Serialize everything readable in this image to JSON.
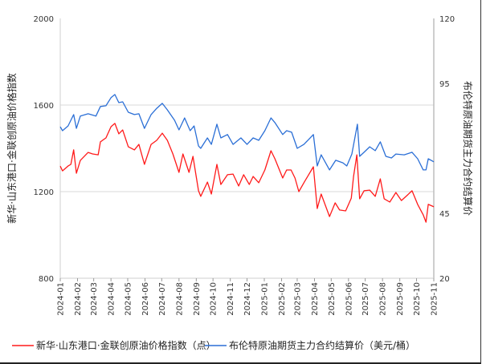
{
  "chart_data": {
    "type": "line",
    "title": "",
    "xlabel": "",
    "ylabel_left": "新华·山东港口·金联创原油价格指数",
    "ylabel_right": "布伦特原油期货主力合约结算价",
    "ylim_left": [
      800,
      2000
    ],
    "ylim_right": [
      20,
      120
    ],
    "yticks_left": [
      800,
      1200,
      1600,
      2000
    ],
    "yticks_right": [
      20,
      45,
      95,
      120
    ],
    "xlim": [
      "2024-01-01",
      "2025-11-01"
    ],
    "xticks": [
      "2024-01",
      "2024-02",
      "2024-03",
      "2024-04",
      "2024-05",
      "2024-06",
      "2024-07",
      "2024-08",
      "2024-09",
      "2024-10",
      "2024-11",
      "2024-12",
      "2025-01",
      "2025-02",
      "2025-03",
      "2025-04",
      "2025-05",
      "2025-06",
      "2025-07",
      "2025-08",
      "2025-09",
      "2025-10",
      "2025-11"
    ],
    "grid": "horizontal at 1200 and 1600",
    "legend_placement": "bottom",
    "series": [
      {
        "name": "新华·山东港口·金联创原油价格指数（点）",
        "axis": "left",
        "color": "#ff1a1a",
        "points": [
          [
            "2024-01-01",
            1318
          ],
          [
            "2024-01-05",
            1296
          ],
          [
            "2024-01-15",
            1318
          ],
          [
            "2024-01-20",
            1326
          ],
          [
            "2024-01-25",
            1393
          ],
          [
            "2024-01-30",
            1285
          ],
          [
            "2024-02-06",
            1344
          ],
          [
            "2024-02-20",
            1381
          ],
          [
            "2024-02-28",
            1374
          ],
          [
            "2024-03-09",
            1370
          ],
          [
            "2024-03-13",
            1430
          ],
          [
            "2024-03-23",
            1448
          ],
          [
            "2024-04-01",
            1500
          ],
          [
            "2024-04-08",
            1515
          ],
          [
            "2024-04-15",
            1467
          ],
          [
            "2024-04-22",
            1485
          ],
          [
            "2024-05-02",
            1407
          ],
          [
            "2024-05-13",
            1393
          ],
          [
            "2024-05-21",
            1418
          ],
          [
            "2024-05-31",
            1326
          ],
          [
            "2024-06-12",
            1418
          ],
          [
            "2024-06-22",
            1437
          ],
          [
            "2024-07-02",
            1470
          ],
          [
            "2024-07-11",
            1437
          ],
          [
            "2024-07-21",
            1374
          ],
          [
            "2024-08-01",
            1289
          ],
          [
            "2024-08-08",
            1374
          ],
          [
            "2024-08-19",
            1289
          ],
          [
            "2024-08-26",
            1363
          ],
          [
            "2024-09-05",
            1204
          ],
          [
            "2024-09-09",
            1178
          ],
          [
            "2024-09-21",
            1244
          ],
          [
            "2024-09-28",
            1189
          ],
          [
            "2024-10-08",
            1326
          ],
          [
            "2024-10-15",
            1233
          ],
          [
            "2024-10-27",
            1278
          ],
          [
            "2024-11-06",
            1281
          ],
          [
            "2024-11-16",
            1226
          ],
          [
            "2024-11-25",
            1278
          ],
          [
            "2024-12-05",
            1233
          ],
          [
            "2024-12-12",
            1270
          ],
          [
            "2024-12-22",
            1241
          ],
          [
            "2025-01-02",
            1300
          ],
          [
            "2025-01-13",
            1389
          ],
          [
            "2025-01-20",
            1352
          ],
          [
            "2025-02-03",
            1263
          ],
          [
            "2025-02-10",
            1300
          ],
          [
            "2025-02-18",
            1300
          ],
          [
            "2025-02-25",
            1263
          ],
          [
            "2025-03-04",
            1200
          ],
          [
            "2025-03-13",
            1241
          ],
          [
            "2025-03-30",
            1315
          ],
          [
            "2025-04-06",
            1122
          ],
          [
            "2025-04-13",
            1189
          ],
          [
            "2025-04-28",
            1085
          ],
          [
            "2025-05-08",
            1148
          ],
          [
            "2025-05-16",
            1115
          ],
          [
            "2025-05-27",
            1111
          ],
          [
            "2025-06-06",
            1170
          ],
          [
            "2025-06-10",
            1270
          ],
          [
            "2025-06-16",
            1370
          ],
          [
            "2025-06-21",
            1167
          ],
          [
            "2025-06-29",
            1204
          ],
          [
            "2025-07-09",
            1207
          ],
          [
            "2025-07-19",
            1178
          ],
          [
            "2025-07-28",
            1259
          ],
          [
            "2025-08-04",
            1167
          ],
          [
            "2025-08-14",
            1152
          ],
          [
            "2025-08-25",
            1196
          ],
          [
            "2025-09-04",
            1159
          ],
          [
            "2025-09-15",
            1185
          ],
          [
            "2025-09-23",
            1204
          ],
          [
            "2025-10-03",
            1141
          ],
          [
            "2025-10-13",
            1093
          ],
          [
            "2025-10-18",
            1059
          ],
          [
            "2025-10-22",
            1141
          ],
          [
            "2025-11-01",
            1130
          ]
        ]
      },
      {
        "name": "布伦特原油期货主力合约结算价（美元/桶）",
        "axis": "right",
        "color": "#2b6fd6",
        "points": [
          [
            "2024-01-01",
            78.3
          ],
          [
            "2024-01-05",
            76.8
          ],
          [
            "2024-01-15",
            78.6
          ],
          [
            "2024-01-25",
            83.0
          ],
          [
            "2024-01-30",
            77.7
          ],
          [
            "2024-02-06",
            82.4
          ],
          [
            "2024-02-20",
            83.3
          ],
          [
            "2024-03-05",
            82.4
          ],
          [
            "2024-03-13",
            86.1
          ],
          [
            "2024-03-23",
            86.4
          ],
          [
            "2024-04-01",
            89.5
          ],
          [
            "2024-04-08",
            90.7
          ],
          [
            "2024-04-15",
            87.6
          ],
          [
            "2024-04-22",
            87.9
          ],
          [
            "2024-05-02",
            83.9
          ],
          [
            "2024-05-13",
            83.0
          ],
          [
            "2024-05-21",
            83.3
          ],
          [
            "2024-05-31",
            77.7
          ],
          [
            "2024-06-12",
            83.0
          ],
          [
            "2024-06-22",
            85.4
          ],
          [
            "2024-07-02",
            87.3
          ],
          [
            "2024-07-11",
            84.8
          ],
          [
            "2024-07-24",
            80.8
          ],
          [
            "2024-08-01",
            77.1
          ],
          [
            "2024-08-11",
            81.7
          ],
          [
            "2024-08-21",
            76.8
          ],
          [
            "2024-08-28",
            78.6
          ],
          [
            "2024-09-05",
            70.9
          ],
          [
            "2024-09-09",
            70.0
          ],
          [
            "2024-09-21",
            74.0
          ],
          [
            "2024-09-28",
            71.5
          ],
          [
            "2024-10-08",
            79.3
          ],
          [
            "2024-10-15",
            74.0
          ],
          [
            "2024-10-27",
            75.3
          ],
          [
            "2024-11-06",
            71.5
          ],
          [
            "2024-11-20",
            74.0
          ],
          [
            "2024-12-01",
            71.5
          ],
          [
            "2024-12-12",
            74.0
          ],
          [
            "2024-12-22",
            73.1
          ],
          [
            "2025-01-02",
            76.8
          ],
          [
            "2025-01-13",
            81.7
          ],
          [
            "2025-01-20",
            79.9
          ],
          [
            "2025-02-03",
            75.3
          ],
          [
            "2025-02-10",
            76.8
          ],
          [
            "2025-02-19",
            76.2
          ],
          [
            "2025-03-01",
            70.0
          ],
          [
            "2025-03-13",
            71.5
          ],
          [
            "2025-03-30",
            75.3
          ],
          [
            "2025-04-06",
            63.2
          ],
          [
            "2025-04-13",
            67.5
          ],
          [
            "2025-04-28",
            61.7
          ],
          [
            "2025-05-09",
            65.4
          ],
          [
            "2025-05-22",
            64.4
          ],
          [
            "2025-05-29",
            63.2
          ],
          [
            "2025-06-07",
            67.8
          ],
          [
            "2025-06-17",
            79.3
          ],
          [
            "2025-06-21",
            66.9
          ],
          [
            "2025-06-29",
            68.5
          ],
          [
            "2025-07-09",
            70.6
          ],
          [
            "2025-07-19",
            69.1
          ],
          [
            "2025-07-28",
            72.5
          ],
          [
            "2025-08-07",
            66.9
          ],
          [
            "2025-08-17",
            66.3
          ],
          [
            "2025-08-25",
            67.8
          ],
          [
            "2025-09-09",
            67.5
          ],
          [
            "2025-09-23",
            68.5
          ],
          [
            "2025-10-03",
            66.0
          ],
          [
            "2025-10-13",
            61.7
          ],
          [
            "2025-10-18",
            61.7
          ],
          [
            "2025-10-22",
            66.0
          ],
          [
            "2025-11-01",
            64.8
          ]
        ]
      }
    ]
  }
}
